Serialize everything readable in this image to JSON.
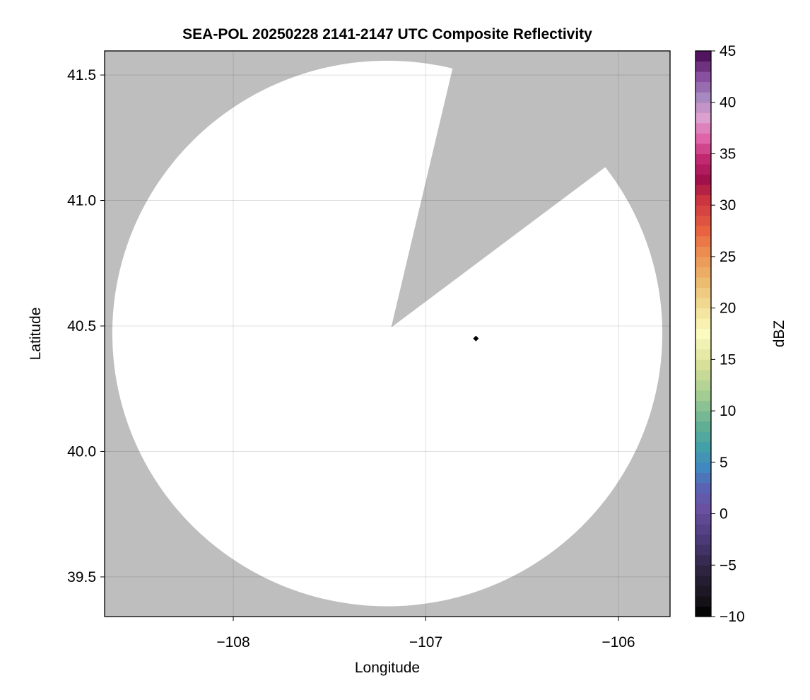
{
  "chart_data": {
    "type": "heatmap",
    "title": "SEA-POL 20250228 2141-2147 UTC Composite Reflectivity",
    "xlabel": "Longitude",
    "ylabel": "Latitude",
    "xlim": [
      -108.668,
      -105.732
    ],
    "ylim": [
      39.342,
      41.596
    ],
    "xticks": [
      -108,
      -107,
      -106
    ],
    "xtick_labels": [
      "−108",
      "−107",
      "−106"
    ],
    "yticks": [
      39.5,
      40.0,
      40.5,
      41.0,
      41.5
    ],
    "ytick_labels": [
      "39.5",
      "40.0",
      "40.5",
      "41.0",
      "41.5"
    ],
    "grid": true,
    "no_data_color": "#bebebe",
    "coverage_color": "#ffffff",
    "coverage": {
      "center": [
        -107.2,
        40.47
      ],
      "radius_lon": 1.428,
      "radius_lat": 1.087,
      "blocked_sector": [
        [
          -107.18,
          40.494
        ],
        [
          -106.86,
          41.53
        ],
        [
          -106.08,
          41.126
        ]
      ]
    },
    "marker": {
      "lon": -106.74,
      "lat": 40.45,
      "color": "#000000",
      "shape": "diamond"
    },
    "colorbar": {
      "label": "dBZ",
      "range": [
        -10,
        45
      ],
      "ticks": [
        -10,
        -5,
        0,
        5,
        10,
        15,
        20,
        25,
        30,
        35,
        40,
        45
      ],
      "tick_labels": [
        "−10",
        "−5",
        "0",
        "5",
        "10",
        "15",
        "20",
        "25",
        "30",
        "35",
        "40",
        "45"
      ],
      "bin_size": 1,
      "color_stops": [
        [
          -10,
          "#050505"
        ],
        [
          -9,
          "#141218"
        ],
        [
          -6,
          "#2e2440"
        ],
        [
          -3,
          "#4a3a78"
        ],
        [
          0,
          "#6a50a0"
        ],
        [
          2,
          "#5a62b4"
        ],
        [
          4,
          "#4288c0"
        ],
        [
          6,
          "#44a0a8"
        ],
        [
          8,
          "#60ae94"
        ],
        [
          11,
          "#a2cc92"
        ],
        [
          14,
          "#d8e098"
        ],
        [
          17,
          "#fbfbc0"
        ],
        [
          19,
          "#f4e6a0"
        ],
        [
          22,
          "#ecbc70"
        ],
        [
          25,
          "#ec8c50"
        ],
        [
          27,
          "#e86440"
        ],
        [
          30,
          "#cc3440"
        ],
        [
          32,
          "#a0104a"
        ],
        [
          34,
          "#c02870"
        ],
        [
          36,
          "#e064a8"
        ],
        [
          38,
          "#dca0d0"
        ],
        [
          40,
          "#a888c0"
        ],
        [
          42,
          "#8a50a0"
        ],
        [
          44,
          "#52145e"
        ],
        [
          45,
          "#3d0a4f"
        ]
      ]
    }
  }
}
